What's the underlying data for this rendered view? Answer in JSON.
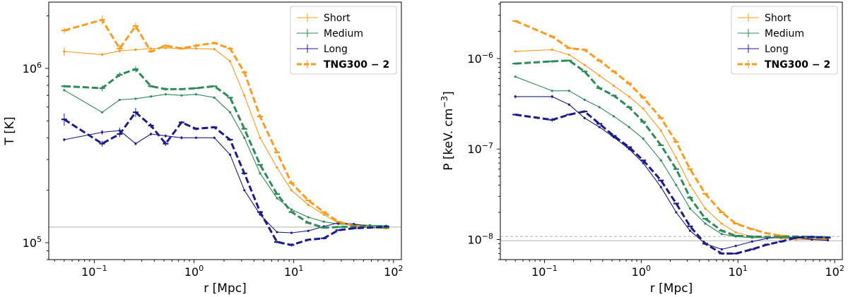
{
  "chart_data": [
    {
      "type": "line",
      "xscale": "log",
      "yscale": "log",
      "xlabel": "r [Mpc]",
      "ylabel": "T [K]",
      "xlim": [
        0.035,
        120
      ],
      "ylim": [
        80000,
        2400000
      ],
      "xticks": [
        {
          "v": 0.1,
          "b": "10",
          "e": "−1"
        },
        {
          "v": 1,
          "b": "10",
          "e": "0"
        },
        {
          "v": 10,
          "b": "10",
          "e": "1"
        },
        {
          "v": 100,
          "b": "10",
          "e": "2"
        }
      ],
      "yticks": [
        {
          "v": 100000,
          "b": "10",
          "e": "5"
        },
        {
          "v": 1000000,
          "b": "10",
          "e": "6"
        }
      ],
      "hlines": [
        {
          "y": 123000,
          "style": "solid"
        }
      ],
      "legend_position": "upper-right",
      "series": [
        {
          "name": "Short",
          "color": "#ff9b1a",
          "style": "thin",
          "x": [
            0.05,
            0.12,
            0.18,
            0.26,
            0.37,
            0.52,
            0.75,
            1.05,
            1.6,
            2.3,
            3.2,
            4.6,
            6.8,
            9.5,
            14,
            20,
            28,
            40,
            58,
            85
          ],
          "y": [
            1250000,
            1200000,
            1260000,
            1280000,
            1300000,
            1310000,
            1300000,
            1300000,
            1290000,
            1100000,
            700000,
            400000,
            270000,
            200000,
            165000,
            145000,
            130000,
            125000,
            123000,
            121000
          ],
          "err": [
            0.06,
            0.02,
            0.02,
            0.02,
            0.01,
            0.01,
            0.01,
            0.01,
            0.01,
            0.01,
            0.01,
            0.01,
            0.01,
            0.01,
            0.01,
            0.01,
            0.01,
            0.01,
            0.01,
            0.01
          ]
        },
        {
          "name": "Medium",
          "color": "#2e8b57",
          "style": "thin",
          "x": [
            0.05,
            0.12,
            0.18,
            0.26,
            0.37,
            0.52,
            0.75,
            1.05,
            1.6,
            2.3,
            3.2,
            4.6,
            6.8,
            9.5,
            14,
            20,
            28,
            40,
            58,
            85
          ],
          "y": [
            750000,
            560000,
            660000,
            670000,
            690000,
            710000,
            700000,
            710000,
            680000,
            560000,
            400000,
            250000,
            180000,
            155000,
            140000,
            132000,
            128000,
            127000,
            126000,
            125000
          ],
          "err": [
            0.01,
            0.01,
            0.01,
            0.01,
            0.01,
            0.01,
            0.01,
            0.01,
            0.01,
            0.01,
            0.01,
            0.01,
            0.01,
            0.01,
            0.01,
            0.01,
            0.01,
            0.01,
            0.01,
            0.01
          ]
        },
        {
          "name": "Long",
          "color": "#1a1a8c",
          "style": "thin",
          "x": [
            0.05,
            0.12,
            0.18,
            0.26,
            0.37,
            0.52,
            0.75,
            1.05,
            1.6,
            2.3,
            3.2,
            4.6,
            6.8,
            9.5,
            14,
            20,
            28,
            40,
            58,
            85
          ],
          "y": [
            390000,
            430000,
            440000,
            370000,
            420000,
            410000,
            400000,
            400000,
            400000,
            320000,
            200000,
            145000,
            115000,
            114000,
            117000,
            124000,
            130000,
            128000,
            124000,
            123000
          ],
          "err": [
            0.02,
            0.03,
            0.04,
            0.02,
            0.02,
            0.02,
            0.02,
            0.01,
            0.01,
            0.01,
            0.01,
            0.01,
            0.01,
            0.01,
            0.01,
            0.01,
            0.01,
            0.01,
            0.01,
            0.01
          ]
        },
        {
          "name": "TNG300 − 2",
          "color": "#ff9b1a",
          "style": "dashed",
          "x": [
            0.05,
            0.12,
            0.18,
            0.26,
            0.37,
            0.52,
            0.75,
            1.05,
            1.6,
            2.3,
            3.2,
            4.6,
            6.8,
            9.5,
            14,
            20,
            28,
            40,
            58,
            85
          ],
          "y": [
            1650000,
            1900000,
            1300000,
            1750000,
            1250000,
            1350000,
            1300000,
            1350000,
            1400000,
            1300000,
            950000,
            530000,
            330000,
            220000,
            175000,
            150000,
            132000,
            125000,
            123000,
            121000
          ],
          "err": [
            0.04,
            0.06,
            0.05,
            0.05,
            0.02,
            0.02,
            0.02,
            0.02,
            0.02,
            0.02,
            0.01,
            0.01,
            0.01,
            0.01,
            0.01,
            0.01,
            0.01,
            0.01,
            0.01,
            0.01
          ]
        },
        {
          "name": "TNG300 − 2 (Medium)",
          "color": "#2e8b57",
          "style": "dashed",
          "legend": false,
          "x": [
            0.05,
            0.12,
            0.18,
            0.26,
            0.37,
            0.52,
            0.75,
            1.05,
            1.6,
            2.3,
            3.2,
            4.6,
            6.8,
            9.5,
            14,
            20,
            28,
            40,
            58,
            85
          ],
          "y": [
            790000,
            770000,
            920000,
            990000,
            790000,
            760000,
            760000,
            770000,
            790000,
            680000,
            450000,
            280000,
            190000,
            150000,
            130000,
            122000,
            123000,
            124000,
            123000,
            122000
          ],
          "err": [
            0.02,
            0.04,
            0.03,
            0.04,
            0.02,
            0.02,
            0.01,
            0.01,
            0.01,
            0.01,
            0.01,
            0.01,
            0.01,
            0.01,
            0.01,
            0.01,
            0.01,
            0.01,
            0.01,
            0.01
          ]
        },
        {
          "name": "TNG300 − 2 (Long)",
          "color": "#1a1a8c",
          "style": "dashed",
          "legend": false,
          "x": [
            0.05,
            0.12,
            0.18,
            0.26,
            0.37,
            0.52,
            0.75,
            1.05,
            1.6,
            2.3,
            3.2,
            4.6,
            6.8,
            9.5,
            14,
            20,
            28,
            40,
            58,
            85
          ],
          "y": [
            510000,
            370000,
            420000,
            560000,
            470000,
            370000,
            490000,
            450000,
            460000,
            390000,
            250000,
            150000,
            101000,
            97000,
            104000,
            106000,
            118000,
            121000,
            122000,
            124000
          ],
          "err": [
            0.08,
            0.04,
            0.04,
            0.06,
            0.03,
            0.03,
            0.02,
            0.02,
            0.01,
            0.01,
            0.01,
            0.01,
            0.02,
            0.02,
            0.01,
            0.01,
            0.01,
            0.01,
            0.01,
            0.01
          ]
        }
      ]
    },
    {
      "type": "line",
      "xscale": "log",
      "yscale": "log",
      "xlabel": "r [Mpc]",
      "ylabel": "P [keV. cm",
      "ylabel_sup": "−3",
      "ylabel_end": "]",
      "xlim": [
        0.035,
        120
      ],
      "ylim": 6e-09,
      "ylim_max": 4.2e-06,
      "xticks": [
        {
          "v": 0.1,
          "b": "10",
          "e": "−1"
        },
        {
          "v": 1,
          "b": "10",
          "e": "0"
        },
        {
          "v": 10,
          "b": "10",
          "e": "1"
        },
        {
          "v": 100,
          "b": "10",
          "e": "2"
        }
      ],
      "yticks": [
        {
          "v": 1e-08,
          "b": "10",
          "e": "−8"
        },
        {
          "v": 1e-07,
          "b": "10",
          "e": "−7"
        },
        {
          "v": 1e-06,
          "b": "10",
          "e": "−6"
        }
      ],
      "hlines": [
        {
          "y": 1.08e-08,
          "style": "dashed"
        },
        {
          "y": 9.7e-09,
          "style": "solid"
        }
      ],
      "legend_position": "upper-right",
      "series": [
        {
          "name": "Short",
          "color": "#ff9b1a",
          "style": "thin",
          "x": [
            0.05,
            0.12,
            0.18,
            0.26,
            0.37,
            0.52,
            0.75,
            1.05,
            1.6,
            2.3,
            3.2,
            4.6,
            6.8,
            9.5,
            14,
            20,
            28,
            40,
            58,
            85
          ],
          "y": [
            1.2e-06,
            1.25e-06,
            1.1e-06,
            8.5e-07,
            6.5e-07,
            5e-07,
            3.8e-07,
            2.8e-07,
            1.6e-07,
            8e-08,
            4e-08,
            2.2e-08,
            1.5e-08,
            1.2e-08,
            1.08e-08,
            1.05e-08,
            1.03e-08,
            1e-08,
            1e-08,
            1e-08
          ],
          "err": [
            0.01,
            0.01,
            0.01,
            0.01,
            0.01,
            0.01,
            0.01,
            0.01,
            0.01,
            0.01,
            0.01,
            0.01,
            0.01,
            0.01,
            0.01,
            0.01,
            0.01,
            0.01,
            0.01,
            0.01
          ]
        },
        {
          "name": "Medium",
          "color": "#2e8b57",
          "style": "thin",
          "x": [
            0.05,
            0.12,
            0.18,
            0.26,
            0.37,
            0.52,
            0.75,
            1.05,
            1.6,
            2.3,
            3.2,
            4.6,
            6.8,
            9.5,
            14,
            20,
            28,
            40,
            58,
            85
          ],
          "y": [
            6.3e-07,
            4.4e-07,
            4.4e-07,
            3.5e-07,
            2.9e-07,
            2.3e-07,
            1.75e-07,
            1.3e-07,
            7.5e-08,
            4e-08,
            2.2e-08,
            1.5e-08,
            1.15e-08,
            1.08e-08,
            1.05e-08,
            1.05e-08,
            1.05e-08,
            1.04e-08,
            1.03e-08,
            1.02e-08
          ],
          "err": [
            0.01,
            0.01,
            0.01,
            0.01,
            0.01,
            0.01,
            0.01,
            0.01,
            0.01,
            0.01,
            0.01,
            0.01,
            0.01,
            0.01,
            0.01,
            0.01,
            0.01,
            0.01,
            0.01,
            0.01
          ]
        },
        {
          "name": "Long",
          "color": "#1a1a8c",
          "style": "thin",
          "x": [
            0.05,
            0.12,
            0.18,
            0.26,
            0.37,
            0.52,
            0.75,
            1.05,
            1.6,
            2.3,
            3.2,
            4.6,
            6.8,
            9.5,
            14,
            20,
            28,
            40,
            58,
            85
          ],
          "y": [
            3.8e-07,
            3.8e-07,
            3.1e-07,
            2.2e-07,
            1.75e-07,
            1.35e-07,
            1e-07,
            7e-08,
            3.8e-08,
            2e-08,
            1.25e-08,
            9e-09,
            7.8e-09,
            8.5e-09,
            9.5e-09,
            1.03e-08,
            1.08e-08,
            1.05e-08,
            1e-08,
            9.8e-09
          ],
          "err": [
            0.04,
            0.04,
            0.03,
            0.03,
            0.01,
            0.01,
            0.01,
            0.01,
            0.01,
            0.01,
            0.02,
            0.01,
            0.01,
            0.01,
            0.01,
            0.01,
            0.01,
            0.01,
            0.01,
            0.01
          ]
        },
        {
          "name": "TNG300 − 2",
          "color": "#ff9b1a",
          "style": "dashed",
          "x": [
            0.05,
            0.12,
            0.18,
            0.26,
            0.37,
            0.52,
            0.75,
            1.05,
            1.6,
            2.3,
            3.2,
            4.6,
            6.8,
            9.5,
            14,
            20,
            28,
            40,
            58,
            85
          ],
          "y": [
            2.6e-06,
            1.75e-06,
            1.3e-06,
            1.25e-06,
            9.5e-07,
            7.2e-07,
            5.3e-07,
            3.7e-07,
            2.2e-07,
            1.2e-07,
            6e-08,
            3.2e-08,
            2e-08,
            1.5e-08,
            1.3e-08,
            1.17e-08,
            1.1e-08,
            1.07e-08,
            1.05e-08,
            1.04e-08
          ],
          "err": [
            0.01,
            0.01,
            0.01,
            0.02,
            0.01,
            0.01,
            0.01,
            0.01,
            0.01,
            0.01,
            0.01,
            0.01,
            0.01,
            0.01,
            0.01,
            0.01,
            0.01,
            0.01,
            0.01,
            0.01
          ]
        },
        {
          "name": "TNG300 − 2 (Medium)",
          "color": "#2e8b57",
          "style": "dashed",
          "legend": false,
          "x": [
            0.05,
            0.12,
            0.18,
            0.26,
            0.37,
            0.52,
            0.75,
            1.05,
            1.6,
            2.3,
            3.2,
            4.6,
            6.8,
            9.5,
            14,
            20,
            28,
            40,
            58,
            85
          ],
          "y": [
            8.8e-07,
            9.3e-07,
            9.5e-07,
            7.2e-07,
            4.7e-07,
            3.9e-07,
            2.9e-07,
            2e-07,
            1.1e-07,
            6e-08,
            2.9e-08,
            1.7e-08,
            1.25e-08,
            1.1e-08,
            1.08e-08,
            1.07e-08,
            1.07e-08,
            1.08e-08,
            1.07e-08,
            1.06e-08
          ],
          "err": [
            0.03,
            0.03,
            0.03,
            0.03,
            0.02,
            0.01,
            0.01,
            0.01,
            0.01,
            0.01,
            0.01,
            0.01,
            0.01,
            0.01,
            0.01,
            0.01,
            0.01,
            0.01,
            0.01,
            0.01
          ]
        },
        {
          "name": "TNG300 − 2 (Long)",
          "color": "#1a1a8c",
          "style": "dashed",
          "legend": false,
          "x": [
            0.05,
            0.12,
            0.18,
            0.26,
            0.37,
            0.52,
            0.75,
            1.05,
            1.6,
            2.3,
            3.2,
            4.6,
            6.8,
            9.5,
            14,
            20,
            28,
            40,
            58,
            85
          ],
          "y": [
            2.4e-07,
            2.1e-07,
            2.4e-07,
            2.6e-07,
            1.9e-07,
            1.4e-07,
            1.05e-07,
            7.5e-08,
            4.5e-08,
            2.5e-08,
            1.4e-08,
            9e-09,
            7e-09,
            7e-09,
            7.8e-09,
            8.8e-09,
            9.5e-09,
            1.05e-08,
            1.07e-08,
            1.05e-08
          ],
          "err": [
            0.02,
            0.05,
            0.02,
            0.03,
            0.02,
            0.01,
            0.01,
            0.01,
            0.01,
            0.01,
            0.01,
            0.01,
            0.02,
            0.02,
            0.01,
            0.01,
            0.01,
            0.01,
            0.01,
            0.01
          ]
        }
      ]
    }
  ]
}
